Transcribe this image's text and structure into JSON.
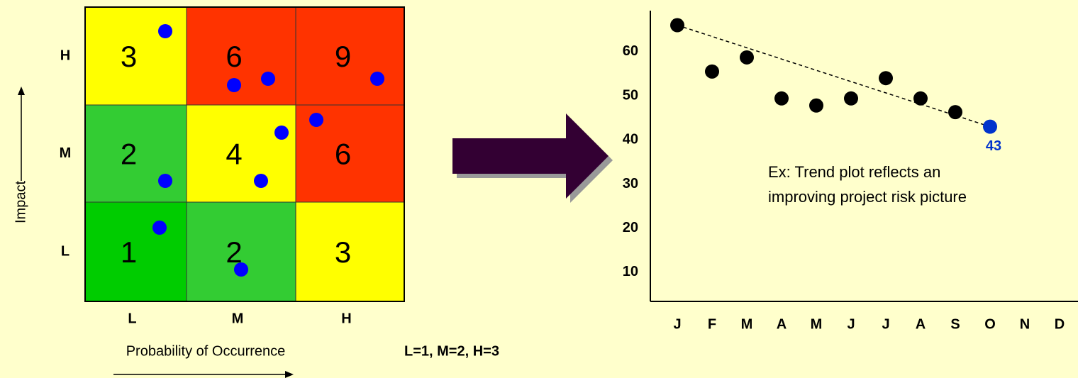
{
  "chart_data": [
    {
      "type": "heatmap",
      "rows": [
        "H",
        "M",
        "L"
      ],
      "columns": [
        "L",
        "M",
        "H"
      ],
      "values": [
        [
          3,
          6,
          9
        ],
        [
          2,
          4,
          6
        ],
        [
          1,
          2,
          3
        ]
      ],
      "colors": [
        [
          "#ffff00",
          "#ff3300",
          "#ff3300"
        ],
        [
          "#33cc33",
          "#ffff00",
          "#ff3300"
        ],
        [
          "#00cc00",
          "#33cc33",
          "#ffff00"
        ]
      ],
      "ylabel": "Impact",
      "xlabel": "Probability of Occurrence",
      "note": "L=1, M=2, H=3"
    },
    {
      "type": "scatter",
      "categories": [
        "J",
        "F",
        "M",
        "A",
        "M",
        "J",
        "J",
        "A",
        "S",
        "O",
        "N",
        "D"
      ],
      "values": [
        66,
        55.5,
        58.7,
        49.4,
        47.8,
        49.4,
        54,
        49.4,
        46.3,
        43,
        null,
        null
      ],
      "value_labels": [
        null,
        null,
        null,
        null,
        null,
        null,
        null,
        null,
        null,
        "43",
        null,
        null
      ],
      "point_colors": [
        "#000000",
        "#000000",
        "#000000",
        "#000000",
        "#000000",
        "#000000",
        "#000000",
        "#000000",
        "#000000",
        "#0033cc",
        null,
        null
      ],
      "ylim": [
        3.4,
        69.3
      ],
      "yticks": [
        10,
        20,
        30,
        40,
        50,
        60
      ],
      "annotation": [
        "Ex: Trend plot reflects an",
        "improving project risk picture"
      ]
    }
  ]
}
